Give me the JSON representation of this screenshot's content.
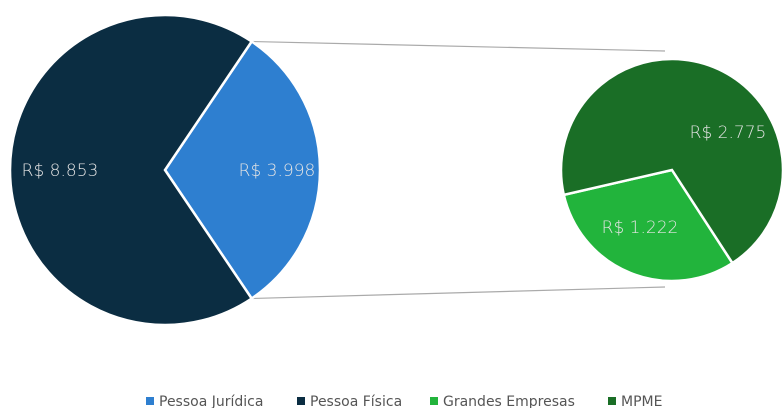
{
  "chart_data": {
    "type": "pie-of-pie",
    "main": {
      "categories": [
        "Pessoa Jurídica",
        "Pessoa Física"
      ],
      "values": [
        3998,
        8853
      ],
      "value_labels": [
        "R$ 3.998",
        "R$ 8.853"
      ],
      "colors": [
        "#2e7fd0",
        "#0b2d42"
      ]
    },
    "secondary": {
      "categories": [
        "Grandes Empresas",
        "MPME"
      ],
      "values": [
        1222,
        2775
      ],
      "value_labels": [
        "R$ 1.222",
        "R$ 2.775"
      ],
      "colors": [
        "#22b43c",
        "#1a6e26"
      ]
    }
  }
}
